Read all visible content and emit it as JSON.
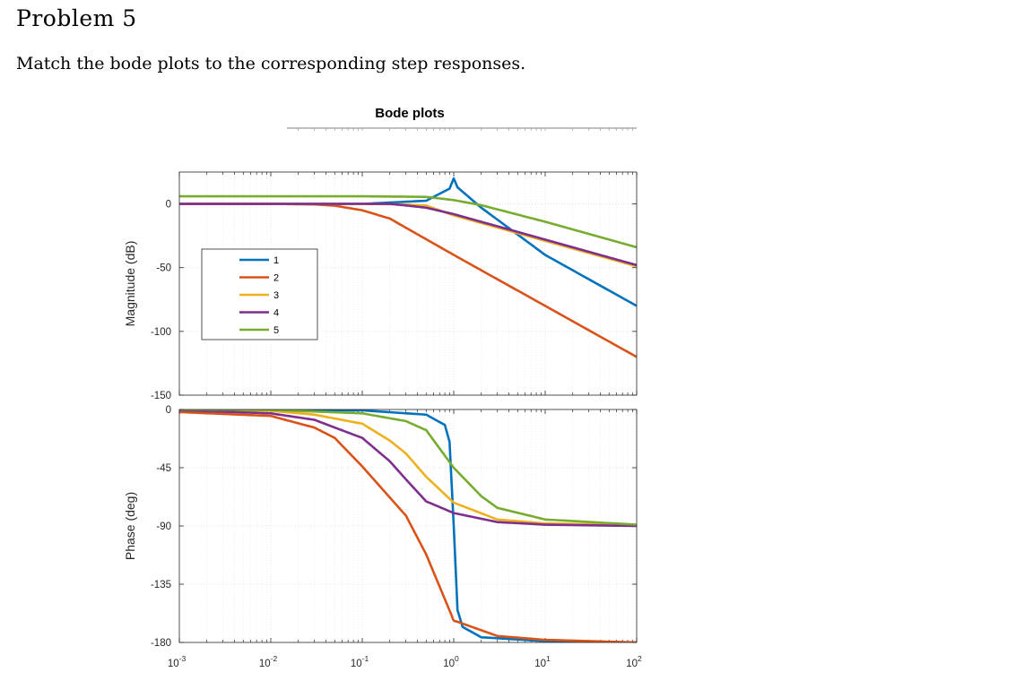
{
  "problem": {
    "title": "Problem 5",
    "text": "Match the bode plots to the corresponding step responses."
  },
  "chart_data": [
    {
      "type": "line",
      "title": "Bode plots",
      "xlabel": "",
      "ylabel": "Magnitude (dB)",
      "xscale": "log",
      "xlim": [
        0.001,
        100
      ],
      "ylim": [
        -150,
        25
      ],
      "yticks": [
        0,
        -50,
        -100,
        -150
      ],
      "xticks": [
        0.001,
        0.01,
        0.1,
        1,
        10,
        100
      ],
      "xtick_labels": [
        {
          "base": "10",
          "exp": "-3"
        },
        {
          "base": "10",
          "exp": "-2"
        },
        {
          "base": "10",
          "exp": "-1"
        },
        {
          "base": "10",
          "exp": "0"
        },
        {
          "base": "10",
          "exp": "1"
        },
        {
          "base": "10",
          "exp": "2"
        }
      ],
      "grid": true,
      "legend_position": "inside-left",
      "series": [
        {
          "name": "1",
          "color": "#0072BD",
          "x": [
            0.001,
            0.01,
            0.1,
            0.5,
            0.9,
            1,
            1.1,
            2,
            10,
            100
          ],
          "values": [
            0,
            0,
            0,
            2.5,
            12,
            20,
            13,
            -3,
            -40,
            -80
          ]
        },
        {
          "name": "2",
          "color": "#D95319",
          "x": [
            0.001,
            0.01,
            0.03,
            0.05,
            0.1,
            0.2,
            1,
            10,
            100
          ],
          "values": [
            0,
            0,
            -0.4,
            -1.4,
            -5,
            -11.5,
            -40,
            -80,
            -120
          ]
        },
        {
          "name": "3",
          "color": "#EDB120",
          "x": [
            0.001,
            0.01,
            0.1,
            0.2,
            0.3,
            0.5,
            1,
            10,
            100
          ],
          "values": [
            0,
            0,
            -0.04,
            -0.2,
            -0.5,
            -1.3,
            -9,
            -29,
            -49
          ]
        },
        {
          "name": "4",
          "color": "#7E2F8E",
          "x": [
            0.001,
            0.01,
            0.1,
            0.2,
            0.3,
            0.5,
            1,
            10,
            100
          ],
          "values": [
            0,
            0,
            0.05,
            0,
            -1.2,
            -3,
            -8,
            -28,
            -48
          ]
        },
        {
          "name": "5",
          "color": "#77AC30",
          "x": [
            0.001,
            0.01,
            0.1,
            0.5,
            1,
            2,
            10,
            100
          ],
          "values": [
            6,
            6,
            6,
            5.5,
            3,
            -1,
            -14,
            -34
          ]
        }
      ]
    },
    {
      "type": "line",
      "xlabel": "",
      "ylabel": "Phase (deg)",
      "xscale": "log",
      "xlim": [
        0.001,
        100
      ],
      "ylim": [
        -180,
        0
      ],
      "yticks": [
        0,
        -45,
        -90,
        -135,
        -180
      ],
      "xticks": [
        0.001,
        0.01,
        0.1,
        1,
        10,
        100
      ],
      "grid": true,
      "series": [
        {
          "name": "1",
          "color": "#0072BD",
          "x": [
            0.001,
            0.1,
            0.5,
            0.8,
            0.9,
            1,
            1.1,
            1.25,
            2,
            10,
            100
          ],
          "values": [
            0,
            -0.7,
            -4,
            -12,
            -25,
            -90,
            -155,
            -168,
            -176,
            -179,
            -180
          ]
        },
        {
          "name": "2",
          "color": "#D95319",
          "x": [
            0.001,
            0.01,
            0.03,
            0.05,
            0.1,
            0.2,
            0.3,
            0.5,
            1,
            3,
            10,
            100
          ],
          "values": [
            -2,
            -5,
            -14,
            -22,
            -44,
            -68,
            -82,
            -112,
            -163,
            -175,
            -178,
            -180
          ]
        },
        {
          "name": "3",
          "color": "#EDB120",
          "x": [
            0.001,
            0.01,
            0.03,
            0.1,
            0.2,
            0.3,
            0.5,
            1,
            3,
            10,
            100
          ],
          "values": [
            -0.1,
            -1,
            -4,
            -11,
            -24,
            -34,
            -52,
            -72,
            -85,
            -88,
            -89.5
          ]
        },
        {
          "name": "4",
          "color": "#7E2F8E",
          "x": [
            0.001,
            0.01,
            0.03,
            0.1,
            0.2,
            0.3,
            0.5,
            1,
            3,
            10,
            100
          ],
          "values": [
            -0.5,
            -3,
            -8,
            -22,
            -40,
            -54,
            -71,
            -80,
            -87,
            -89,
            -90
          ]
        },
        {
          "name": "5",
          "color": "#77AC30",
          "x": [
            0.001,
            0.01,
            0.1,
            0.3,
            0.5,
            1,
            2,
            3,
            10,
            100
          ],
          "values": [
            0,
            -0.3,
            -3,
            -9,
            -16,
            -45,
            -67,
            -76,
            -85,
            -89
          ]
        }
      ]
    }
  ]
}
